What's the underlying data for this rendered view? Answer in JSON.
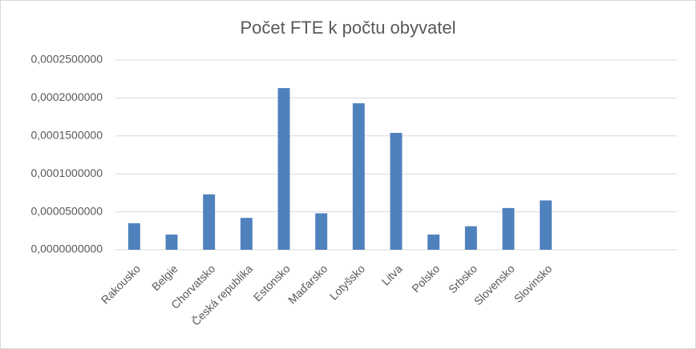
{
  "chart_data": {
    "type": "bar",
    "title": "Počet FTE k počtu obyvatel",
    "categories": [
      "Rakousko",
      "Belgie",
      "Chorvatsko",
      "Česká republika",
      "Estonsko",
      "Maďarsko",
      "Lotyšsko",
      "Litva",
      "Polsko",
      "Srbsko",
      "Slovensko",
      "Slovinsko",
      null,
      null,
      null
    ],
    "values": [
      3.5e-05,
      2e-05,
      7.3e-05,
      4.2e-05,
      0.000213,
      4.8e-05,
      0.000193,
      0.000154,
      2e-05,
      3.1e-05,
      5.5e-05,
      6.5e-05,
      null,
      null,
      null
    ],
    "color": "#4f81bd",
    "ylim": [
      0,
      0.00025
    ],
    "yticks": [
      {
        "value": 0,
        "label": "0,0000000000"
      },
      {
        "value": 5e-05,
        "label": "0,0000500000"
      },
      {
        "value": 0.0001,
        "label": "0,0001000000"
      },
      {
        "value": 0.00015,
        "label": "0,0001500000"
      },
      {
        "value": 0.0002,
        "label": "0,0002000000"
      },
      {
        "value": 0.00025,
        "label": "0,0002500000"
      }
    ],
    "grid": true
  }
}
